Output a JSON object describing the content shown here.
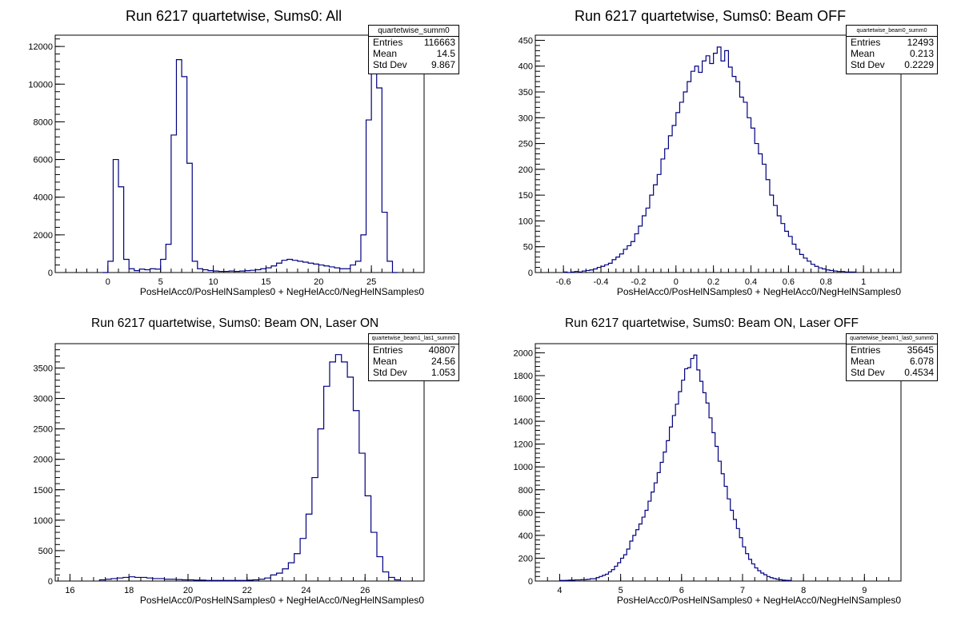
{
  "chart_data": [
    {
      "type": "bar",
      "title": "Run 6217 quartetwise, Sums0: All",
      "xlabel": "PosHelAcc0/PosHelNSamples0 + NegHelAcc0/NegHelNSamples0",
      "ylabel": "",
      "xlim": [
        -5,
        30
      ],
      "ylim": [
        0,
        12600
      ],
      "xticks": [
        0,
        5,
        10,
        15,
        20,
        25
      ],
      "yticks": [
        0,
        2000,
        4000,
        6000,
        8000,
        10000,
        12000
      ],
      "grid": false,
      "legend": "top-right",
      "stats": {
        "name": "quartetwise_summ0",
        "entries": "116663",
        "mean": "14.5",
        "std_dev": "9.867"
      },
      "bin_width": 0.5,
      "bins": [
        [
          -0.5,
          0
        ],
        [
          0,
          600
        ],
        [
          0.5,
          6000
        ],
        [
          1,
          4550
        ],
        [
          1.5,
          700
        ],
        [
          2,
          200
        ],
        [
          2.5,
          100
        ],
        [
          3,
          180
        ],
        [
          3.5,
          150
        ],
        [
          4,
          200
        ],
        [
          4.5,
          180
        ],
        [
          5,
          700
        ],
        [
          5.5,
          1500
        ],
        [
          6,
          7300
        ],
        [
          6.5,
          11300
        ],
        [
          7,
          10400
        ],
        [
          7.5,
          5800
        ],
        [
          8,
          600
        ],
        [
          8.5,
          200
        ],
        [
          9,
          150
        ],
        [
          9.5,
          100
        ],
        [
          10,
          80
        ],
        [
          10.5,
          60
        ],
        [
          11,
          60
        ],
        [
          11.5,
          80
        ],
        [
          12,
          60
        ],
        [
          12.5,
          80
        ],
        [
          13,
          100
        ],
        [
          13.5,
          120
        ],
        [
          14,
          150
        ],
        [
          14.5,
          200
        ],
        [
          15,
          250
        ],
        [
          15.5,
          350
        ],
        [
          16,
          500
        ],
        [
          16.5,
          650
        ],
        [
          17,
          700
        ],
        [
          17.5,
          650
        ],
        [
          18,
          600
        ],
        [
          18.5,
          550
        ],
        [
          19,
          500
        ],
        [
          19.5,
          450
        ],
        [
          20,
          400
        ],
        [
          20.5,
          350
        ],
        [
          21,
          300
        ],
        [
          21.5,
          250
        ],
        [
          22,
          200
        ],
        [
          22.5,
          200
        ],
        [
          23,
          400
        ],
        [
          23.5,
          600
        ],
        [
          24,
          2000
        ],
        [
          24.5,
          8100
        ],
        [
          25,
          11900
        ],
        [
          25.5,
          9800
        ],
        [
          26,
          3200
        ],
        [
          26.5,
          600
        ],
        [
          27,
          0
        ]
      ]
    },
    {
      "type": "bar",
      "title": "Run 6217 quartetwise, Sums0: Beam OFF",
      "xlabel": "PosHelAcc0/PosHelNSamples0 + NegHelAcc0/NegHelNSamples0",
      "ylabel": "",
      "xlim": [
        -0.75,
        1.2
      ],
      "ylim": [
        0,
        460
      ],
      "xticks": [
        -0.6,
        -0.4,
        -0.2,
        0,
        0.2,
        0.4,
        0.6,
        0.8,
        1
      ],
      "yticks": [
        0,
        50,
        100,
        150,
        200,
        250,
        300,
        350,
        400,
        450
      ],
      "grid": false,
      "legend": "top-right",
      "stats": {
        "name": "quartetwise_beam0_summ0",
        "entries": "12493",
        "mean": "0.213",
        "std_dev": "0.2229"
      },
      "bin_width": 0.02,
      "bins": [
        [
          -0.6,
          1
        ],
        [
          -0.58,
          0
        ],
        [
          -0.56,
          1
        ],
        [
          -0.54,
          2
        ],
        [
          -0.52,
          1
        ],
        [
          -0.5,
          3
        ],
        [
          -0.48,
          4
        ],
        [
          -0.46,
          5
        ],
        [
          -0.44,
          7
        ],
        [
          -0.42,
          10
        ],
        [
          -0.4,
          12
        ],
        [
          -0.38,
          15
        ],
        [
          -0.36,
          18
        ],
        [
          -0.34,
          25
        ],
        [
          -0.32,
          30
        ],
        [
          -0.3,
          36
        ],
        [
          -0.28,
          45
        ],
        [
          -0.26,
          52
        ],
        [
          -0.24,
          60
        ],
        [
          -0.22,
          75
        ],
        [
          -0.2,
          90
        ],
        [
          -0.18,
          110
        ],
        [
          -0.16,
          125
        ],
        [
          -0.14,
          150
        ],
        [
          -0.12,
          170
        ],
        [
          -0.1,
          190
        ],
        [
          -0.08,
          220
        ],
        [
          -0.06,
          240
        ],
        [
          -0.04,
          265
        ],
        [
          -0.02,
          285
        ],
        [
          0,
          310
        ],
        [
          0.02,
          330
        ],
        [
          0.04,
          350
        ],
        [
          0.06,
          370
        ],
        [
          0.08,
          390
        ],
        [
          0.1,
          400
        ],
        [
          0.12,
          388
        ],
        [
          0.14,
          410
        ],
        [
          0.16,
          420
        ],
        [
          0.18,
          405
        ],
        [
          0.2,
          425
        ],
        [
          0.22,
          437
        ],
        [
          0.24,
          410
        ],
        [
          0.26,
          430
        ],
        [
          0.28,
          398
        ],
        [
          0.3,
          380
        ],
        [
          0.32,
          370
        ],
        [
          0.34,
          340
        ],
        [
          0.36,
          330
        ],
        [
          0.38,
          300
        ],
        [
          0.4,
          280
        ],
        [
          0.42,
          250
        ],
        [
          0.44,
          230
        ],
        [
          0.46,
          210
        ],
        [
          0.48,
          180
        ],
        [
          0.5,
          150
        ],
        [
          0.52,
          130
        ],
        [
          0.54,
          110
        ],
        [
          0.56,
          95
        ],
        [
          0.58,
          80
        ],
        [
          0.6,
          70
        ],
        [
          0.62,
          55
        ],
        [
          0.64,
          45
        ],
        [
          0.66,
          35
        ],
        [
          0.68,
          28
        ],
        [
          0.7,
          22
        ],
        [
          0.72,
          16
        ],
        [
          0.74,
          12
        ],
        [
          0.76,
          9
        ],
        [
          0.78,
          7
        ],
        [
          0.8,
          5
        ],
        [
          0.82,
          4
        ],
        [
          0.84,
          3
        ],
        [
          0.86,
          2
        ],
        [
          0.88,
          2
        ],
        [
          0.9,
          1
        ],
        [
          0.92,
          1
        ],
        [
          0.94,
          1
        ]
      ]
    },
    {
      "type": "bar",
      "title": "Run 6217 quartetwise, Sums0: Beam ON, Laser ON",
      "xlabel": "PosHelAcc0/PosHelNSamples0 + NegHelAcc0/NegHelNSamples0",
      "ylabel": "",
      "xlim": [
        15.5,
        28
      ],
      "ylim": [
        0,
        3900
      ],
      "xticks": [
        16,
        18,
        20,
        22,
        24,
        26
      ],
      "yticks": [
        0,
        500,
        1000,
        1500,
        2000,
        2500,
        3000,
        3500
      ],
      "grid": false,
      "legend": "top-right",
      "stats": {
        "name": "quartetwise_beam1_las1_summ0",
        "entries": "40807",
        "mean": "24.56",
        "std_dev": "1.053"
      },
      "bin_width": 0.2,
      "bins": [
        [
          17,
          20
        ],
        [
          17.2,
          30
        ],
        [
          17.4,
          40
        ],
        [
          17.6,
          50
        ],
        [
          17.8,
          60
        ],
        [
          18,
          70
        ],
        [
          18.2,
          60
        ],
        [
          18.4,
          60
        ],
        [
          18.6,
          50
        ],
        [
          18.8,
          40
        ],
        [
          19,
          40
        ],
        [
          19.2,
          30
        ],
        [
          19.4,
          30
        ],
        [
          19.6,
          25
        ],
        [
          19.8,
          20
        ],
        [
          20,
          20
        ],
        [
          20.2,
          15
        ],
        [
          20.4,
          15
        ],
        [
          20.6,
          10
        ],
        [
          20.8,
          10
        ],
        [
          21,
          10
        ],
        [
          21.2,
          10
        ],
        [
          21.4,
          10
        ],
        [
          21.6,
          10
        ],
        [
          21.8,
          10
        ],
        [
          22,
          15
        ],
        [
          22.2,
          20
        ],
        [
          22.4,
          30
        ],
        [
          22.6,
          50
        ],
        [
          22.8,
          100
        ],
        [
          23,
          130
        ],
        [
          23.2,
          200
        ],
        [
          23.4,
          300
        ],
        [
          23.6,
          450
        ],
        [
          23.8,
          700
        ],
        [
          24,
          1100
        ],
        [
          24.2,
          1700
        ],
        [
          24.4,
          2500
        ],
        [
          24.6,
          3200
        ],
        [
          24.8,
          3600
        ],
        [
          25,
          3720
        ],
        [
          25.2,
          3600
        ],
        [
          25.4,
          3350
        ],
        [
          25.6,
          2800
        ],
        [
          25.8,
          2100
        ],
        [
          26,
          1400
        ],
        [
          26.2,
          800
        ],
        [
          26.4,
          400
        ],
        [
          26.6,
          150
        ],
        [
          26.8,
          60
        ],
        [
          27,
          20
        ]
      ]
    },
    {
      "type": "bar",
      "title": "Run 6217 quartetwise, Sums0: Beam ON, Laser OFF",
      "xlabel": "PosHelAcc0/PosHelNSamples0 + NegHelAcc0/NegHelNSamples0",
      "ylabel": "",
      "xlim": [
        3.6,
        9.6
      ],
      "ylim": [
        0,
        2080
      ],
      "xticks": [
        4,
        5,
        6,
        7,
        8,
        9
      ],
      "yticks": [
        0,
        200,
        400,
        600,
        800,
        1000,
        1200,
        1400,
        1600,
        1800,
        2000
      ],
      "grid": false,
      "legend": "top-right",
      "stats": {
        "name": "quartetwise_beam1_las0_summ0",
        "entries": "35645",
        "mean": "6.078",
        "std_dev": "0.4534"
      },
      "bin_width": 0.05,
      "bins": [
        [
          4,
          5
        ],
        [
          4.05,
          5
        ],
        [
          4.1,
          6
        ],
        [
          4.15,
          8
        ],
        [
          4.2,
          8
        ],
        [
          4.25,
          10
        ],
        [
          4.3,
          10
        ],
        [
          4.35,
          12
        ],
        [
          4.4,
          12
        ],
        [
          4.45,
          15
        ],
        [
          4.5,
          20
        ],
        [
          4.55,
          20
        ],
        [
          4.6,
          30
        ],
        [
          4.65,
          40
        ],
        [
          4.7,
          50
        ],
        [
          4.75,
          60
        ],
        [
          4.8,
          80
        ],
        [
          4.85,
          100
        ],
        [
          4.9,
          130
        ],
        [
          4.95,
          160
        ],
        [
          5,
          200
        ],
        [
          5.05,
          230
        ],
        [
          5.1,
          280
        ],
        [
          5.15,
          350
        ],
        [
          5.2,
          400
        ],
        [
          5.25,
          450
        ],
        [
          5.3,
          500
        ],
        [
          5.35,
          560
        ],
        [
          5.4,
          620
        ],
        [
          5.45,
          700
        ],
        [
          5.5,
          780
        ],
        [
          5.55,
          860
        ],
        [
          5.6,
          950
        ],
        [
          5.65,
          1040
        ],
        [
          5.7,
          1130
        ],
        [
          5.75,
          1230
        ],
        [
          5.8,
          1350
        ],
        [
          5.85,
          1450
        ],
        [
          5.9,
          1550
        ],
        [
          5.95,
          1660
        ],
        [
          6,
          1760
        ],
        [
          6.05,
          1860
        ],
        [
          6.1,
          1870
        ],
        [
          6.15,
          1950
        ],
        [
          6.2,
          1980
        ],
        [
          6.25,
          1850
        ],
        [
          6.3,
          1750
        ],
        [
          6.35,
          1650
        ],
        [
          6.4,
          1560
        ],
        [
          6.45,
          1430
        ],
        [
          6.5,
          1300
        ],
        [
          6.55,
          1180
        ],
        [
          6.6,
          1050
        ],
        [
          6.65,
          940
        ],
        [
          6.7,
          830
        ],
        [
          6.75,
          720
        ],
        [
          6.8,
          620
        ],
        [
          6.85,
          540
        ],
        [
          6.9,
          460
        ],
        [
          6.95,
          380
        ],
        [
          7,
          300
        ],
        [
          7.05,
          240
        ],
        [
          7.1,
          190
        ],
        [
          7.15,
          150
        ],
        [
          7.2,
          115
        ],
        [
          7.25,
          90
        ],
        [
          7.3,
          70
        ],
        [
          7.35,
          55
        ],
        [
          7.4,
          40
        ],
        [
          7.45,
          30
        ],
        [
          7.5,
          22
        ],
        [
          7.55,
          16
        ],
        [
          7.6,
          12
        ],
        [
          7.65,
          8
        ],
        [
          7.7,
          6
        ],
        [
          7.75,
          5
        ]
      ]
    }
  ]
}
